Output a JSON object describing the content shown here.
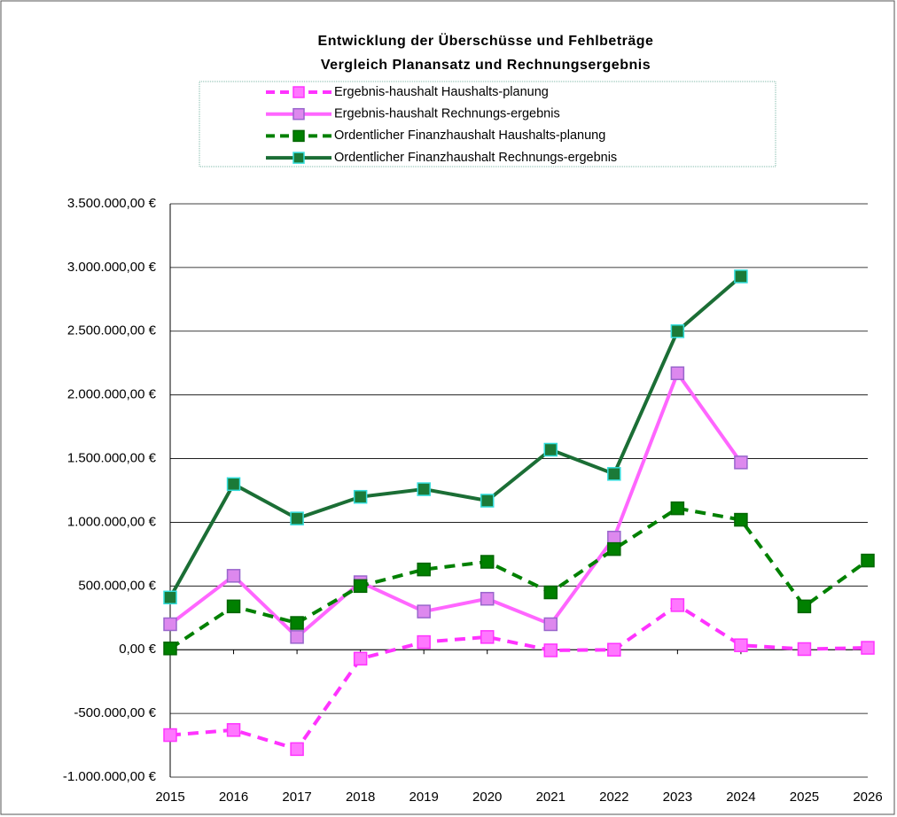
{
  "chart_data": {
    "type": "line",
    "title": "Entwicklung der Überschüsse und Fehlbeträge",
    "subtitle": "Vergleich Planansatz und Rechnungsergebnis",
    "categories": [
      "2015",
      "2016",
      "2017",
      "2018",
      "2019",
      "2020",
      "2021",
      "2022",
      "2023",
      "2024",
      "2025",
      "2026"
    ],
    "series": [
      {
        "name": "Ergebnis-haushalt Haushalts-planung",
        "color": "#ff33ff",
        "marker_color": "#ff77ff",
        "marker_edge": "#ff33ff",
        "dashed": true,
        "values": [
          -670000,
          -630000,
          -780000,
          -70000,
          60000,
          100000,
          -5000,
          0,
          350000,
          35000,
          5000,
          15000
        ]
      },
      {
        "name": "Ergebnis-haushalt Rechnungs-ergebnis",
        "color": "#ff66ff",
        "marker_color": "#dd88ee",
        "marker_edge": "#9966cc",
        "dashed": false,
        "values": [
          200000,
          580000,
          100000,
          530000,
          300000,
          400000,
          200000,
          880000,
          2170000,
          1470000,
          null,
          null
        ]
      },
      {
        "name": "Ordentlicher Finanzhaushalt Haushalts-planung",
        "color": "#008000",
        "marker_color": "#008000",
        "marker_edge": "#006600",
        "dashed": true,
        "values": [
          10000,
          340000,
          210000,
          500000,
          630000,
          690000,
          450000,
          790000,
          1110000,
          1020000,
          340000,
          700000
        ]
      },
      {
        "name": "Ordentlicher Finanzhaushalt Rechnungs-ergebnis",
        "color": "#1b6e35",
        "marker_color": "#1b7a38",
        "marker_edge": "#33dddd",
        "dashed": false,
        "values": [
          410000,
          1300000,
          1030000,
          1200000,
          1260000,
          1170000,
          1570000,
          1380000,
          2500000,
          2930000,
          null,
          null
        ]
      }
    ],
    "ylim": [
      -1000000,
      3500000
    ],
    "yticks": [
      {
        "value": -1000000,
        "label": "-1.000.000,00 €"
      },
      {
        "value": -500000,
        "label": "-500.000,00 €"
      },
      {
        "value": 0,
        "label": "0,00 €"
      },
      {
        "value": 500000,
        "label": "500.000,00 €"
      },
      {
        "value": 1000000,
        "label": "1.000.000,00 €"
      },
      {
        "value": 1500000,
        "label": "1.500.000,00 €"
      },
      {
        "value": 2000000,
        "label": "2.000.000,00 €"
      },
      {
        "value": 2500000,
        "label": "2.500.000,00 €"
      },
      {
        "value": 3000000,
        "label": "3.000.000,00 €"
      },
      {
        "value": 3500000,
        "label": "3.500.000,00 €"
      }
    ],
    "grid": true
  }
}
